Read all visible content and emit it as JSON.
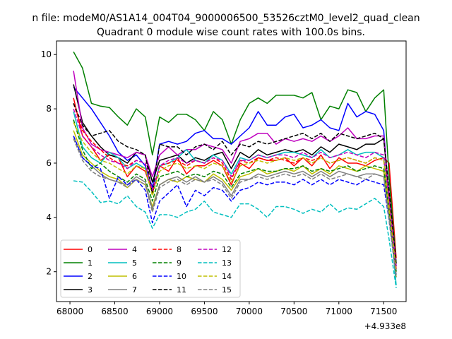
{
  "chart_data": {
    "type": "line",
    "suptitle": "n file: modeM0/AS1A14_004T04_9000006500_53526cztM0_level2_quad_clean",
    "title": "Quadrant 0 module wise count rates with 100.0s bins.",
    "xlabel": "",
    "ylabel": "",
    "offset_text": "+4.933e8",
    "xlim": [
      67850,
      71750
    ],
    "ylim": [
      0.9,
      10.5
    ],
    "xticks": [
      68000,
      68500,
      69000,
      69500,
      70000,
      70500,
      71000,
      71500
    ],
    "xtick_labels": [
      "68000",
      "68500",
      "69000",
      "69500",
      "70000",
      "70500",
      "71000",
      "71500"
    ],
    "yticks": [
      2,
      4,
      6,
      8,
      10
    ],
    "ytick_labels": [
      "2",
      "4",
      "6",
      "8",
      "10"
    ],
    "grid": false,
    "legend_placement": "lower-left",
    "legend_columns": 4,
    "x": [
      68040,
      68140,
      68240,
      68340,
      68440,
      68540,
      68640,
      68740,
      68840,
      68920,
      69000,
      69100,
      69200,
      69300,
      69400,
      69500,
      69600,
      69700,
      69800,
      69900,
      70000,
      70100,
      70200,
      70300,
      70400,
      70500,
      70600,
      70700,
      70800,
      70900,
      71000,
      71100,
      71200,
      71300,
      71400,
      71500,
      71560,
      71640
    ],
    "series": [
      {
        "name": "0",
        "color": "#ff0000",
        "dash": "solid",
        "values": [
          8.4,
          7.0,
          6.6,
          6.1,
          6.3,
          6.2,
          5.5,
          5.9,
          5.7,
          4.9,
          5.9,
          5.7,
          6.2,
          5.6,
          5.9,
          5.9,
          6.1,
          5.9,
          5.2,
          6.0,
          5.8,
          6.2,
          6.1,
          6.1,
          6.2,
          5.9,
          6.2,
          5.9,
          6.3,
          5.8,
          6.2,
          6.0,
          6.0,
          5.9,
          6.1,
          6.2,
          6.0,
          2.5
        ]
      },
      {
        "name": "1",
        "color": "#008000",
        "dash": "solid",
        "values": [
          10.1,
          9.5,
          8.2,
          8.1,
          8.05,
          7.7,
          7.4,
          8.0,
          7.7,
          6.3,
          7.7,
          7.5,
          7.8,
          7.8,
          7.6,
          7.2,
          7.9,
          7.6,
          6.7,
          7.6,
          8.2,
          8.4,
          8.2,
          8.5,
          8.5,
          8.5,
          8.4,
          8.6,
          7.6,
          8.1,
          8.0,
          8.7,
          8.6,
          7.9,
          8.4,
          8.7,
          5.5,
          2.3
        ]
      },
      {
        "name": "2",
        "color": "#0000ff",
        "dash": "solid",
        "values": [
          8.8,
          8.4,
          8.0,
          7.5,
          7.0,
          6.4,
          6.1,
          6.3,
          5.9,
          5.1,
          6.7,
          6.8,
          6.7,
          6.8,
          7.1,
          7.2,
          6.9,
          6.9,
          6.7,
          7.0,
          7.3,
          7.9,
          7.4,
          7.4,
          7.7,
          7.8,
          7.3,
          7.4,
          7.6,
          7.3,
          7.2,
          8.2,
          7.7,
          7.9,
          7.8,
          7.2,
          4.7,
          2.0
        ]
      },
      {
        "name": "3",
        "color": "#000000",
        "dash": "solid",
        "values": [
          8.9,
          7.5,
          7.0,
          6.6,
          6.3,
          6.2,
          6.0,
          6.4,
          6.3,
          5.3,
          6.1,
          6.2,
          6.3,
          6.0,
          6.2,
          6.1,
          6.3,
          6.4,
          5.8,
          6.4,
          6.2,
          6.5,
          6.3,
          6.4,
          6.5,
          6.4,
          6.5,
          6.3,
          6.6,
          6.4,
          6.7,
          6.6,
          6.5,
          6.7,
          6.7,
          6.9,
          4.8,
          2.2
        ]
      },
      {
        "name": "4",
        "color": "#bf00bf",
        "dash": "solid",
        "values": [
          9.4,
          7.3,
          6.7,
          6.5,
          6.4,
          6.3,
          6.2,
          6.4,
          6.3,
          5.5,
          6.3,
          6.6,
          6.3,
          6.5,
          6.5,
          6.7,
          6.6,
          6.5,
          6.0,
          6.8,
          6.9,
          7.1,
          7.1,
          6.7,
          6.9,
          6.8,
          6.9,
          6.8,
          7.0,
          6.8,
          7.0,
          7.3,
          6.9,
          6.9,
          7.0,
          7.0,
          4.9,
          2.2
        ]
      },
      {
        "name": "5",
        "color": "#00bfbf",
        "dash": "solid",
        "values": [
          7.9,
          6.6,
          6.2,
          6.0,
          6.4,
          6.2,
          5.8,
          6.0,
          5.8,
          4.9,
          5.9,
          6.0,
          6.2,
          6.5,
          6.1,
          6.0,
          6.3,
          6.1,
          5.6,
          6.2,
          6.1,
          6.3,
          6.2,
          6.3,
          6.4,
          6.4,
          6.3,
          6.2,
          6.5,
          6.2,
          6.3,
          6.5,
          6.3,
          6.4,
          6.4,
          6.2,
          4.4,
          1.5
        ]
      },
      {
        "name": "6",
        "color": "#bfbf00",
        "dash": "solid",
        "values": [
          7.2,
          6.3,
          6.0,
          5.7,
          5.5,
          5.4,
          5.1,
          5.4,
          5.2,
          4.4,
          5.2,
          5.4,
          5.3,
          5.5,
          5.4,
          5.3,
          5.6,
          5.4,
          5.0,
          5.5,
          5.6,
          5.8,
          5.6,
          5.7,
          5.8,
          5.7,
          5.9,
          5.6,
          5.8,
          5.6,
          5.9,
          5.8,
          5.7,
          5.9,
          5.8,
          5.7,
          4.2,
          1.8
        ]
      },
      {
        "name": "7",
        "color": "#808080",
        "dash": "solid",
        "values": [
          7.0,
          6.2,
          5.9,
          5.6,
          5.4,
          5.3,
          5.2,
          5.5,
          5.3,
          4.3,
          5.2,
          5.4,
          5.5,
          5.3,
          5.5,
          5.3,
          5.5,
          5.3,
          4.8,
          5.4,
          5.4,
          5.6,
          5.5,
          5.6,
          5.7,
          5.6,
          5.7,
          5.5,
          5.7,
          5.5,
          5.7,
          5.6,
          5.5,
          5.6,
          5.6,
          5.5,
          4.0,
          1.9
        ]
      },
      {
        "name": "8",
        "color": "#ff0000",
        "dash": "dashed",
        "values": [
          8.2,
          7.2,
          6.8,
          6.5,
          6.2,
          6.0,
          5.9,
          6.1,
          6.0,
          4.9,
          5.9,
          6.0,
          6.1,
          5.9,
          6.1,
          6.0,
          6.2,
          6.0,
          5.4,
          6.1,
          6.0,
          6.2,
          6.1,
          6.2,
          6.1,
          6.0,
          6.2,
          6.1,
          6.2,
          6.0,
          6.1,
          6.2,
          6.1,
          6.0,
          6.2,
          6.1,
          4.5,
          2.1
        ]
      },
      {
        "name": "9",
        "color": "#008000",
        "dash": "dashed",
        "values": [
          7.6,
          6.5,
          5.8,
          6.0,
          5.7,
          5.5,
          5.3,
          5.6,
          5.4,
          4.6,
          5.5,
          5.6,
          5.7,
          5.5,
          5.6,
          5.5,
          5.7,
          5.6,
          5.1,
          5.6,
          5.7,
          5.8,
          5.7,
          5.7,
          5.8,
          5.8,
          5.9,
          5.7,
          5.8,
          5.7,
          5.8,
          5.9,
          5.7,
          5.8,
          5.9,
          5.8,
          4.3,
          2.0
        ]
      },
      {
        "name": "10",
        "color": "#0000ff",
        "dash": "dashed",
        "values": [
          7.0,
          6.2,
          5.9,
          5.8,
          4.7,
          5.5,
          5.2,
          5.4,
          5.0,
          3.8,
          4.6,
          4.9,
          5.2,
          4.4,
          5.0,
          4.8,
          5.1,
          5.0,
          4.6,
          5.0,
          5.1,
          5.3,
          5.2,
          5.3,
          5.3,
          5.2,
          5.4,
          5.2,
          5.4,
          5.2,
          5.4,
          5.3,
          5.2,
          5.4,
          5.3,
          5.2,
          3.9,
          1.8
        ]
      },
      {
        "name": "11",
        "color": "#000000",
        "dash": "dashed",
        "values": [
          8.2,
          7.4,
          7.0,
          7.1,
          7.2,
          6.8,
          6.6,
          6.5,
          6.3,
          4.9,
          6.7,
          6.6,
          6.6,
          6.3,
          6.6,
          6.7,
          6.5,
          6.8,
          6.3,
          6.7,
          6.6,
          6.8,
          6.7,
          6.8,
          6.9,
          7.0,
          7.1,
          6.9,
          7.1,
          6.8,
          7.1,
          7.0,
          6.9,
          7.0,
          7.1,
          6.9,
          5.0,
          2.3
        ]
      },
      {
        "name": "12",
        "color": "#bf00bf",
        "dash": "dashed",
        "values": [
          8.0,
          7.0,
          6.6,
          6.3,
          6.1,
          6.0,
          5.8,
          6.1,
          6.0,
          5.0,
          5.9,
          6.1,
          6.2,
          6.0,
          6.1,
          6.0,
          6.2,
          6.1,
          5.5,
          6.1,
          6.1,
          6.3,
          6.2,
          6.3,
          6.3,
          6.2,
          6.4,
          6.2,
          6.4,
          6.2,
          6.3,
          6.4,
          6.3,
          6.2,
          6.4,
          6.3,
          4.6,
          2.1
        ]
      },
      {
        "name": "13",
        "color": "#00bfbf",
        "dash": "dashed",
        "values": [
          5.35,
          5.3,
          4.95,
          4.55,
          4.6,
          4.5,
          4.8,
          4.4,
          4.2,
          3.6,
          4.1,
          4.1,
          4.0,
          4.2,
          4.3,
          4.6,
          4.2,
          4.1,
          4.0,
          4.5,
          4.5,
          4.3,
          4.0,
          4.4,
          4.4,
          4.3,
          4.15,
          4.3,
          4.2,
          4.5,
          4.2,
          4.35,
          4.3,
          4.5,
          4.7,
          4.4,
          3.2,
          1.4
        ]
      },
      {
        "name": "14",
        "color": "#bfbf00",
        "dash": "dashed",
        "values": [
          7.5,
          6.8,
          6.4,
          6.1,
          6.0,
          5.8,
          5.6,
          5.9,
          5.8,
          4.8,
          5.7,
          5.9,
          6.0,
          5.8,
          5.9,
          5.8,
          6.0,
          5.9,
          5.3,
          5.9,
          6.0,
          6.1,
          6.0,
          6.1,
          6.2,
          6.1,
          6.2,
          6.0,
          6.2,
          6.0,
          6.1,
          6.2,
          6.1,
          6.0,
          6.2,
          6.1,
          4.4,
          2.0
        ]
      },
      {
        "name": "15",
        "color": "#808080",
        "dash": "dashed",
        "values": [
          6.9,
          6.1,
          5.7,
          5.5,
          5.4,
          5.3,
          5.1,
          5.4,
          5.2,
          4.2,
          5.1,
          5.3,
          5.4,
          5.2,
          5.4,
          5.3,
          5.4,
          5.2,
          4.7,
          5.3,
          5.4,
          5.5,
          5.4,
          5.5,
          5.6,
          5.5,
          5.6,
          5.4,
          5.6,
          5.4,
          5.5,
          5.6,
          5.5,
          5.4,
          5.6,
          5.5,
          3.9,
          1.8
        ]
      }
    ]
  }
}
